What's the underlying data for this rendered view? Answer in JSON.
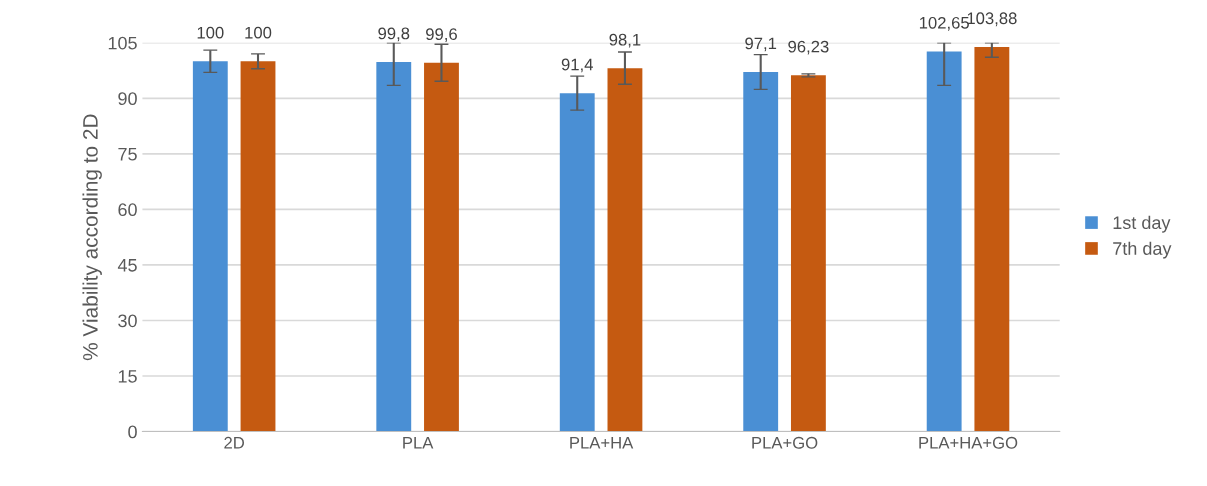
{
  "chart_data": {
    "type": "bar",
    "ylabel": "% Viability according to 2D",
    "categories": [
      "2D",
      "PLA",
      "PLA+HA",
      "PLA+GO",
      "PLA+HA+GO"
    ],
    "series": [
      {
        "name": "1st day",
        "color": "#4a8fd4",
        "values": [
          100,
          99.8,
          91.4,
          97.1,
          102.65
        ],
        "value_labels": [
          "100",
          "99,8",
          "91,4",
          "97,1",
          "102,65"
        ],
        "errors": [
          [
            97,
            103
          ],
          [
            93.5,
            105
          ],
          [
            86.8,
            96
          ],
          [
            92.4,
            101.8
          ],
          [
            93.5,
            105
          ]
        ]
      },
      {
        "name": "7th day",
        "color": "#c55a11",
        "values": [
          100,
          99.6,
          98.1,
          96.23,
          103.88
        ],
        "value_labels": [
          "100",
          "99,6",
          "98,1",
          "96,23",
          "103,88"
        ],
        "errors": [
          [
            98,
            102
          ],
          [
            94.6,
            104.6
          ],
          [
            93.8,
            102.5
          ],
          [
            95.8,
            96.6
          ],
          [
            101.1,
            105
          ]
        ]
      }
    ],
    "ylim": [
      0,
      105
    ],
    "yticks": [
      0,
      15,
      30,
      45,
      60,
      75,
      90,
      105
    ],
    "grid": "y",
    "legend": "right"
  }
}
